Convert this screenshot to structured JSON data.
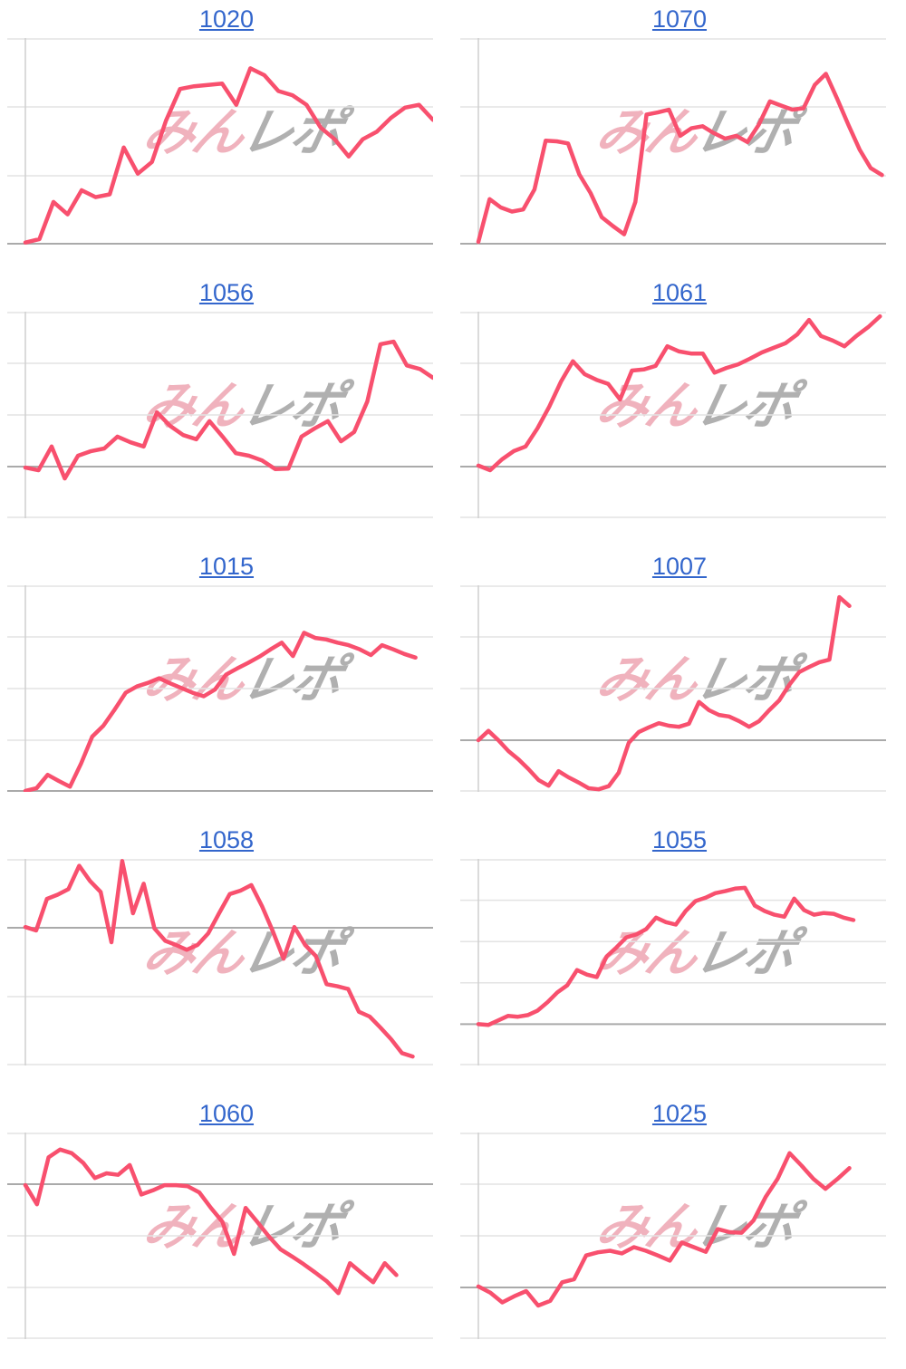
{
  "page": {
    "background": "#ffffff"
  },
  "colors": {
    "line": "#f8506e",
    "gridline": "#e3e3e3",
    "zero_line": "#aaaaaa",
    "axis": "#cfcfcf",
    "title_link": "#3366cc",
    "watermark_pink": "#f0b2bd",
    "watermark_gray": "#b0b0b0"
  },
  "watermark": {
    "pink_text": "みん",
    "gray_text": "レポ"
  },
  "chart_data": {
    "type": "line",
    "layout": {
      "columns": 2,
      "rows": 5,
      "legend": "none",
      "grid": "horizontal-only"
    },
    "note_units": "values are in gridline intervals above the darker zero line",
    "charts": [
      {
        "title": "1020",
        "ymax": 3,
        "ymin": 0,
        "x_end": 1.0,
        "values": [
          0.03,
          0.08,
          0.62,
          0.44,
          0.79,
          0.69,
          0.73,
          1.41,
          1.03,
          1.2,
          1.8,
          2.26,
          2.3,
          2.32,
          2.34,
          2.03,
          2.56,
          2.46,
          2.23,
          2.17,
          2.03,
          1.7,
          1.53,
          1.28,
          1.53,
          1.64,
          1.84,
          1.99,
          2.03,
          1.81
        ]
      },
      {
        "title": "1070",
        "ymax": 3,
        "ymin": 0,
        "x_end": 0.99,
        "values": [
          0.04,
          0.66,
          0.54,
          0.48,
          0.51,
          0.8,
          1.51,
          1.5,
          1.47,
          1.02,
          0.75,
          0.4,
          0.27,
          0.15,
          0.62,
          1.89,
          1.92,
          1.96,
          1.58,
          1.69,
          1.72,
          1.62,
          1.54,
          1.58,
          1.49,
          1.74,
          2.08,
          2.02,
          1.96,
          1.98,
          2.32,
          2.48,
          2.12,
          1.74,
          1.38,
          1.11,
          1.01
        ]
      },
      {
        "title": "1056",
        "ymax": 3,
        "ymin": -1,
        "x_end": 1.0,
        "values": [
          -0.02,
          -0.07,
          0.39,
          -0.23,
          0.21,
          0.3,
          0.35,
          0.58,
          0.47,
          0.39,
          1.05,
          0.79,
          0.61,
          0.53,
          0.88,
          0.58,
          0.26,
          0.21,
          0.12,
          -0.05,
          -0.04,
          0.58,
          0.74,
          0.88,
          0.49,
          0.67,
          1.26,
          2.37,
          2.42,
          1.96,
          1.89,
          1.72
        ]
      },
      {
        "title": "1061",
        "ymax": 3,
        "ymin": -1,
        "x_end": 0.985,
        "values": [
          0.02,
          -0.07,
          0.14,
          0.3,
          0.39,
          0.74,
          1.16,
          1.65,
          2.04,
          1.79,
          1.68,
          1.6,
          1.3,
          1.86,
          1.88,
          1.95,
          2.33,
          2.23,
          2.19,
          2.19,
          1.82,
          1.91,
          1.98,
          2.09,
          2.21,
          2.3,
          2.39,
          2.56,
          2.84,
          2.53,
          2.44,
          2.33,
          2.53,
          2.7,
          2.91
        ]
      },
      {
        "title": "1015",
        "ymax": 4,
        "ymin": 0,
        "x_end": 0.957,
        "values": [
          0.02,
          0.07,
          0.33,
          0.21,
          0.1,
          0.55,
          1.07,
          1.28,
          1.59,
          1.92,
          2.04,
          2.11,
          2.2,
          2.1,
          2.01,
          1.92,
          1.85,
          1.98,
          2.27,
          2.39,
          2.5,
          2.62,
          2.76,
          2.89,
          2.63,
          3.08,
          2.98,
          2.95,
          2.89,
          2.84,
          2.76,
          2.65,
          2.84,
          2.76,
          2.67,
          2.6
        ]
      },
      {
        "title": "1007",
        "ymax": 3,
        "ymin": -1,
        "x_end": 0.91,
        "values": [
          0.0,
          0.18,
          0.0,
          -0.21,
          -0.37,
          -0.56,
          -0.77,
          -0.88,
          -0.6,
          -0.72,
          -0.82,
          -0.93,
          -0.95,
          -0.89,
          -0.63,
          -0.05,
          0.16,
          0.25,
          0.33,
          0.28,
          0.26,
          0.32,
          0.74,
          0.58,
          0.49,
          0.46,
          0.37,
          0.26,
          0.37,
          0.58,
          0.77,
          1.07,
          1.32,
          1.42,
          1.51,
          1.56,
          2.77,
          2.6
        ]
      },
      {
        "title": "1058",
        "ymax": 1,
        "ymin": -2,
        "x_end": 0.95,
        "values": [
          0.01,
          -0.04,
          0.42,
          0.48,
          0.56,
          0.9,
          0.68,
          0.52,
          -0.21,
          0.97,
          0.21,
          0.64,
          -0.01,
          -0.19,
          -0.25,
          -0.32,
          -0.25,
          -0.08,
          0.21,
          0.49,
          0.54,
          0.62,
          0.31,
          -0.05,
          -0.45,
          0.01,
          -0.25,
          -0.41,
          -0.82,
          -0.85,
          -0.89,
          -1.22,
          -1.29,
          -1.45,
          -1.62,
          -1.82,
          -1.87
        ]
      },
      {
        "title": "1055",
        "ymax": 4,
        "ymin": -1,
        "x_end": 0.92,
        "values": [
          0.0,
          -0.02,
          0.09,
          0.2,
          0.18,
          0.22,
          0.33,
          0.53,
          0.77,
          0.94,
          1.31,
          1.2,
          1.14,
          1.64,
          1.86,
          2.1,
          2.17,
          2.3,
          2.58,
          2.47,
          2.41,
          2.74,
          2.98,
          3.06,
          3.17,
          3.22,
          3.28,
          3.3,
          2.87,
          2.74,
          2.65,
          2.6,
          3.04,
          2.76,
          2.65,
          2.69,
          2.67,
          2.58,
          2.52
        ]
      },
      {
        "title": "1060",
        "ymax": 1,
        "ymin": -3,
        "x_end": 0.91,
        "values": [
          -0.02,
          -0.39,
          0.52,
          0.67,
          0.6,
          0.41,
          0.12,
          0.21,
          0.18,
          0.37,
          -0.2,
          -0.12,
          -0.02,
          -0.02,
          -0.04,
          -0.16,
          -0.46,
          -0.73,
          -1.35,
          -0.46,
          -0.73,
          -1.01,
          -1.26,
          -1.4,
          -1.55,
          -1.71,
          -1.88,
          -2.11,
          -1.53,
          -1.72,
          -1.9,
          -1.53,
          -1.76
        ]
      },
      {
        "title": "1025",
        "ymax": 3,
        "ymin": -1,
        "x_end": 0.91,
        "values": [
          0.02,
          -0.1,
          -0.29,
          -0.17,
          -0.07,
          -0.35,
          -0.26,
          0.1,
          0.16,
          0.62,
          0.68,
          0.71,
          0.66,
          0.78,
          0.71,
          0.62,
          0.52,
          0.87,
          0.78,
          0.69,
          1.13,
          1.07,
          1.06,
          1.3,
          1.75,
          2.1,
          2.6,
          2.36,
          2.1,
          1.91,
          2.1,
          2.31
        ]
      }
    ]
  }
}
